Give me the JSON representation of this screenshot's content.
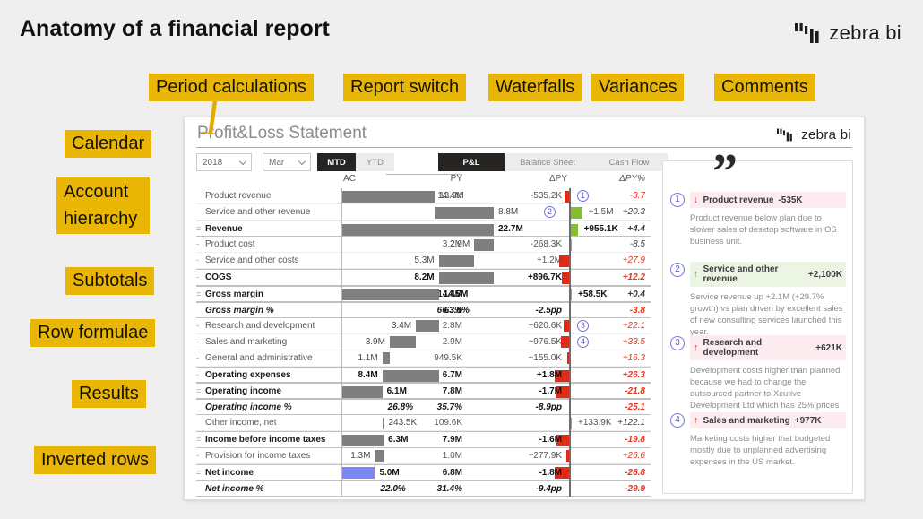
{
  "page": {
    "title": "Anatomy of a financial report",
    "brand": "zebra bi"
  },
  "callouts": {
    "period_calculations": "Period calculations",
    "report_switch": "Report switch",
    "waterfalls": "Waterfalls",
    "variances": "Variances",
    "comments": "Comments",
    "calendar": "Calendar",
    "account_hierarchy": "Account hierarchy",
    "subtotals": "Subtotals",
    "row_formulae": "Row formulae",
    "results": "Results",
    "inverted_rows": "Inverted rows"
  },
  "report": {
    "title": "Profit&Loss Statement",
    "brand": "zebra bi",
    "filters": {
      "year": "2018",
      "month": "Mar"
    },
    "period_buttons": [
      {
        "label": "MTD",
        "selected": true
      },
      {
        "label": "YTD",
        "selected": false
      }
    ],
    "report_tabs": [
      {
        "label": "P&L",
        "selected": true
      },
      {
        "label": "Balance Sheet",
        "selected": false
      },
      {
        "label": "Cash Flow",
        "selected": false
      }
    ],
    "columns": {
      "py": "PY",
      "ac": "AC",
      "dpy": "ΔPY",
      "dpy_pct": "ΔPY%"
    },
    "rows": [
      {
        "prefix": "",
        "label": "Product revenue",
        "py": "14.4M",
        "ac": {
          "start": 0,
          "value": 13.9,
          "label": "13.9M",
          "side": "right"
        },
        "dpy": {
          "label": "-535.2K",
          "impact": "bad",
          "size": 0.535,
          "side": "left"
        },
        "dpy_pct": {
          "label": "-3.7",
          "bad": true
        },
        "marker": {
          "num": "1",
          "side": "right"
        }
      },
      {
        "prefix": "",
        "label": "Service and other revenue",
        "py": "7.3M",
        "ac": {
          "start": 13.9,
          "value": 8.8,
          "label": "8.8M",
          "side": "right"
        },
        "dpy": {
          "label": "+1.5M",
          "impact": "good",
          "size": 1.5,
          "side": "right"
        },
        "dpy_pct": {
          "label": "+20.3",
          "bad": false
        },
        "marker": {
          "num": "2",
          "side": "left"
        }
      },
      {
        "prefix": "=",
        "label": "Revenue",
        "bold": true,
        "py": "21.8M",
        "ac": {
          "start": 0,
          "value": 22.7,
          "label": "22.7M",
          "side": "right"
        },
        "dpy": {
          "label": "+955.1K",
          "impact": "good",
          "size": 0.955,
          "side": "right"
        },
        "dpy_pct": {
          "label": "+4.4",
          "bad": false
        }
      },
      {
        "prefix": "-",
        "label": "Product cost",
        "py": "3.2M",
        "ac": {
          "start": 19.8,
          "value": 2.9,
          "label": "2.9M",
          "side": "left"
        },
        "dpy": {
          "label": "-268.3K",
          "impact": "good",
          "size": 0.268,
          "side": "left"
        },
        "dpy_pct": {
          "label": "-8.5",
          "bad": false
        }
      },
      {
        "prefix": "-",
        "label": "Service and other costs",
        "py": "4.2M",
        "ac": {
          "start": 14.5,
          "value": 5.3,
          "label": "5.3M",
          "side": "left"
        },
        "dpy": {
          "label": "+1.2M",
          "impact": "bad",
          "size": 1.2,
          "side": "left"
        },
        "dpy_pct": {
          "label": "+27.9",
          "bad": true
        }
      },
      {
        "prefix": "-",
        "label": "COGS",
        "bold": true,
        "py": "7.3M",
        "ac": {
          "start": 14.5,
          "value": 8.2,
          "label": "8.2M",
          "side": "left"
        },
        "dpy": {
          "label": "+896.7K",
          "impact": "bad",
          "size": 0.897,
          "side": "left"
        },
        "dpy_pct": {
          "label": "+12.2",
          "bad": true
        }
      },
      {
        "prefix": "=",
        "label": "Gross margin",
        "bold": true,
        "py": "14.4M",
        "ac": {
          "start": 0,
          "value": 14.5,
          "label": "14.5M",
          "side": "right"
        },
        "dpy": {
          "label": "+58.5K",
          "impact": "good",
          "size": 0.058,
          "side": "right"
        },
        "dpy_pct": {
          "label": "+0.4",
          "bad": false
        }
      },
      {
        "prefix": "",
        "label": "Gross margin %",
        "bold": true,
        "pct_row": true,
        "py": "66.3%",
        "ac": {
          "nobar": true,
          "pos": 14.5,
          "label": "63.8%"
        },
        "dpy": {
          "nobar": true,
          "label": "-2.5pp",
          "side": "left"
        },
        "dpy_pct": {
          "label": "-3.8",
          "bad": true
        }
      },
      {
        "prefix": "-",
        "label": "Research and development",
        "py": "2.8M",
        "ac": {
          "start": 11.1,
          "value": 3.4,
          "label": "3.4M",
          "side": "left"
        },
        "dpy": {
          "label": "+620.6K",
          "impact": "bad",
          "size": 0.621,
          "side": "left"
        },
        "dpy_pct": {
          "label": "+22.1",
          "bad": true
        },
        "marker": {
          "num": "3",
          "side": "right"
        }
      },
      {
        "prefix": "-",
        "label": "Sales and marketing",
        "py": "2.9M",
        "ac": {
          "start": 7.2,
          "value": 3.9,
          "label": "3.9M",
          "side": "left"
        },
        "dpy": {
          "label": "+976.5K",
          "impact": "bad",
          "size": 0.977,
          "side": "left"
        },
        "dpy_pct": {
          "label": "+33.5",
          "bad": true
        },
        "marker": {
          "num": "4",
          "side": "right"
        }
      },
      {
        "prefix": "-",
        "label": "General and administrative",
        "py": "949.5K",
        "ac": {
          "start": 6.1,
          "value": 1.1,
          "label": "1.1M",
          "side": "left"
        },
        "dpy": {
          "label": "+155.0K",
          "impact": "bad",
          "size": 0.155,
          "side": "left"
        },
        "dpy_pct": {
          "label": "+16.3",
          "bad": true
        }
      },
      {
        "prefix": "-",
        "label": "Operating expenses",
        "bold": true,
        "py": "6.7M",
        "ac": {
          "start": 6.1,
          "value": 8.4,
          "label": "8.4M",
          "side": "left"
        },
        "dpy": {
          "label": "+1.8M",
          "impact": "bad",
          "size": 1.8,
          "side": "left"
        },
        "dpy_pct": {
          "label": "+26.3",
          "bad": true
        }
      },
      {
        "prefix": "=",
        "label": "Operating income",
        "bold": true,
        "py": "7.8M",
        "ac": {
          "start": 0,
          "value": 6.1,
          "label": "6.1M",
          "side": "right"
        },
        "dpy": {
          "label": "-1.7M",
          "impact": "bad",
          "size": 1.7,
          "side": "left"
        },
        "dpy_pct": {
          "label": "-21.8",
          "bad": true
        }
      },
      {
        "prefix": "",
        "label": "Operating income %",
        "bold": true,
        "pct_row": true,
        "py": "35.7%",
        "ac": {
          "nobar": true,
          "pos": 6.1,
          "label": "26.8%"
        },
        "dpy": {
          "nobar": true,
          "label": "-8.9pp",
          "side": "left"
        },
        "dpy_pct": {
          "label": "-25.1",
          "bad": true
        }
      },
      {
        "prefix": "",
        "label": "Other income, net",
        "py": "109.6K",
        "ac": {
          "start": 6.1,
          "value": 0.24,
          "label": "243.5K",
          "side": "right"
        },
        "dpy": {
          "label": "+133.9K",
          "impact": "good",
          "size": 0.134,
          "side": "right"
        },
        "dpy_pct": {
          "label": "+122.1",
          "bad": false
        }
      },
      {
        "prefix": "=",
        "label": "Income before income taxes",
        "bold": true,
        "py": "7.9M",
        "ac": {
          "start": 0,
          "value": 6.3,
          "label": "6.3M",
          "side": "right"
        },
        "dpy": {
          "label": "-1.6M",
          "impact": "bad",
          "size": 1.6,
          "side": "left"
        },
        "dpy_pct": {
          "label": "-19.8",
          "bad": true
        }
      },
      {
        "prefix": "-",
        "label": "Provision for income taxes",
        "py": "1.0M",
        "ac": {
          "start": 5.0,
          "value": 1.3,
          "label": "1.3M",
          "side": "left"
        },
        "dpy": {
          "label": "+277.9K",
          "impact": "bad",
          "size": 0.278,
          "side": "left"
        },
        "dpy_pct": {
          "label": "+26.6",
          "bad": true
        }
      },
      {
        "prefix": "=",
        "label": "Net income",
        "bold": true,
        "py": "6.8M",
        "ac": {
          "start": 0,
          "value": 5.0,
          "label": "5.0M",
          "side": "right",
          "color": "blue"
        },
        "dpy": {
          "label": "-1.8M",
          "impact": "bad",
          "size": 1.8,
          "side": "left"
        },
        "dpy_pct": {
          "label": "-26.8",
          "bad": true
        }
      },
      {
        "prefix": "",
        "label": "Net income %",
        "bold": true,
        "pct_row": true,
        "py": "31.4%",
        "ac": {
          "nobar": true,
          "pos": 5.0,
          "label": "22.0%"
        },
        "dpy": {
          "nobar": true,
          "label": "-9.4pp",
          "side": "left"
        },
        "dpy_pct": {
          "label": "-29.9",
          "bad": true
        }
      }
    ]
  },
  "comments_panel": {
    "quote_mark": "”",
    "items": [
      {
        "num": "1",
        "dir": "down",
        "impact": "bad",
        "title": "Product revenue",
        "value": "-535K",
        "body": "Product revenue below plan due to slower sales of desktop software in OS business unit."
      },
      {
        "num": "2",
        "dir": "up",
        "impact": "good",
        "title": "Service and other revenue",
        "value": "+2,100K",
        "body": "Service revenue up +2.1M (+29.7% growth) vs plan driven by excellent sales of new consulting services launched this year."
      },
      {
        "num": "3",
        "dir": "up",
        "impact": "bad",
        "title": "Research and development",
        "value": "+621K",
        "body": "Development costs higher than planned because we had to change the outsourced partner to Xcutive Development Ltd which has 25% prices"
      },
      {
        "num": "4",
        "dir": "up",
        "impact": "bad",
        "title": "Sales and marketing",
        "value": "+977K",
        "body": "Marketing costs higher that budgeted mostly due to unplanned advertising expenses in the US market."
      }
    ]
  },
  "colors": {
    "accent_yellow": "#e9b606",
    "bar_gray": "#7f7f7f",
    "good_green": "#84bd32",
    "bad_red": "#e02b16",
    "inverted_blue": "#7b86f7",
    "marker_blue": "#7272e0"
  }
}
